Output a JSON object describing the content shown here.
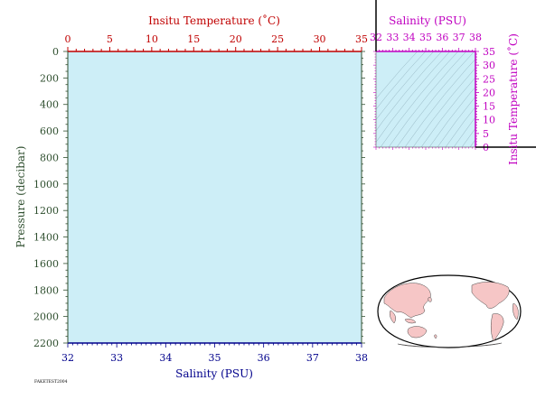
{
  "colors": {
    "plot_fill": "#cdeef7",
    "temperature": "#c00000",
    "salinity": "#00008b",
    "pressure": "#2f4f2f",
    "inset": "#c000c0",
    "land": "#f6c6c6",
    "ocean": "#ffffff"
  },
  "footer_tag": "FAKETEST2004",
  "chart_data": [
    {
      "type": "line",
      "title": "",
      "series": [],
      "top_axis": {
        "label": "Insitu Temperature (˚C)",
        "range": [
          0,
          35
        ],
        "ticks": [
          "0",
          "5",
          "10",
          "15",
          "20",
          "25",
          "30",
          "35"
        ]
      },
      "bottom_axis": {
        "label": "Salinity (PSU)",
        "range": [
          32,
          38
        ],
        "ticks": [
          "32",
          "33",
          "34",
          "35",
          "36",
          "37",
          "38"
        ]
      },
      "left_axis": {
        "label": "Pressure (decibar)",
        "range": [
          0,
          2200
        ],
        "inverted": true,
        "ticks": [
          "0",
          "200",
          "400",
          "600",
          "800",
          "1000",
          "1200",
          "1400",
          "1600",
          "1800",
          "2000",
          "2200"
        ]
      },
      "grid": false
    },
    {
      "type": "scatter",
      "title": "",
      "series": [],
      "top_axis": {
        "label": "Salinity (PSU)",
        "range": [
          32,
          38
        ],
        "ticks": [
          "32",
          "33",
          "34",
          "35",
          "36",
          "37",
          "38"
        ]
      },
      "right_axis": {
        "label": "Insitu Temperature (˚C)",
        "range": [
          0,
          35
        ],
        "ticks": [
          "0",
          "5",
          "10",
          "15",
          "20",
          "25",
          "30",
          "35"
        ]
      },
      "background_contours": "density isopleths",
      "grid": false
    }
  ],
  "map": {
    "projection": "world (Winkel-type)",
    "stations": []
  }
}
